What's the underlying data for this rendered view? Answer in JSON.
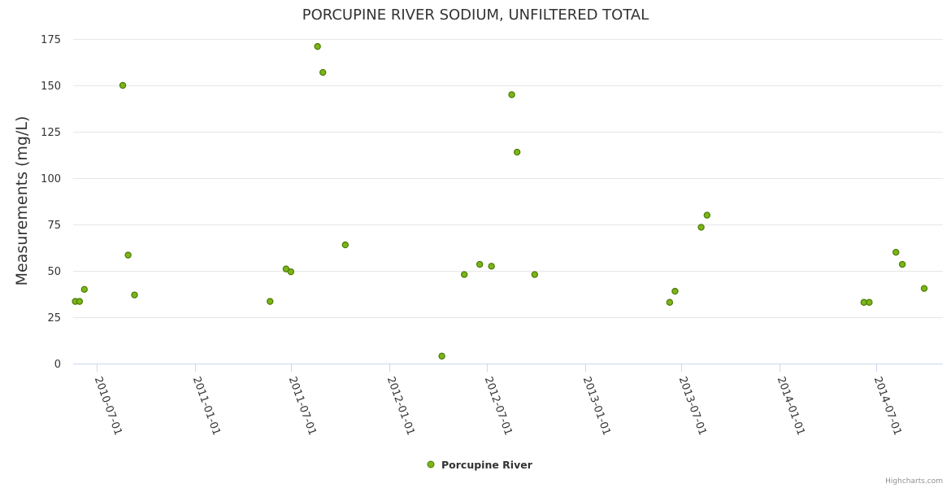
{
  "chart_data": {
    "type": "scatter",
    "title": "PORCUPINE RIVER SODIUM, UNFILTERED TOTAL",
    "xlabel": "",
    "ylabel": "Measurements (mg/L)",
    "ylim": [
      0,
      175
    ],
    "yticks": [
      "0",
      "25",
      "50",
      "75",
      "100",
      "125",
      "150",
      "175"
    ],
    "xlim": [
      "2010-05-18",
      "2014-11-03"
    ],
    "xticks": [
      "2010-07-01",
      "2011-01-01",
      "2011-07-01",
      "2012-01-01",
      "2012-07-01",
      "2013-01-01",
      "2013-07-01",
      "2014-01-01",
      "2014-07-01"
    ],
    "grid": true,
    "legend": "bottom-center",
    "series": [
      {
        "name": "Porcupine River",
        "color": "#7cb518",
        "points": [
          {
            "x": "2010-05-22",
            "y": 33.5
          },
          {
            "x": "2010-05-30",
            "y": 33.5
          },
          {
            "x": "2010-06-08",
            "y": 40
          },
          {
            "x": "2010-08-19",
            "y": 150
          },
          {
            "x": "2010-08-29",
            "y": 58.5
          },
          {
            "x": "2010-09-10",
            "y": 37
          },
          {
            "x": "2011-05-22",
            "y": 33.5
          },
          {
            "x": "2011-06-21",
            "y": 51
          },
          {
            "x": "2011-06-30",
            "y": 49.5
          },
          {
            "x": "2011-08-19",
            "y": 171
          },
          {
            "x": "2011-08-29",
            "y": 157
          },
          {
            "x": "2011-10-10",
            "y": 64
          },
          {
            "x": "2012-04-08",
            "y": 4
          },
          {
            "x": "2012-05-20",
            "y": 48
          },
          {
            "x": "2012-06-18",
            "y": 53.5
          },
          {
            "x": "2012-07-10",
            "y": 52.5
          },
          {
            "x": "2012-08-17",
            "y": 145
          },
          {
            "x": "2012-08-27",
            "y": 114
          },
          {
            "x": "2012-09-29",
            "y": 48
          },
          {
            "x": "2013-06-09",
            "y": 33
          },
          {
            "x": "2013-06-19",
            "y": 39
          },
          {
            "x": "2013-08-07",
            "y": 73.5
          },
          {
            "x": "2013-08-18",
            "y": 80
          },
          {
            "x": "2014-06-08",
            "y": 33
          },
          {
            "x": "2014-06-18",
            "y": 33
          },
          {
            "x": "2014-08-07",
            "y": 60
          },
          {
            "x": "2014-08-19",
            "y": 53.5
          },
          {
            "x": "2014-09-29",
            "y": 40.5
          }
        ]
      }
    ],
    "credits": "Highcharts.com"
  }
}
